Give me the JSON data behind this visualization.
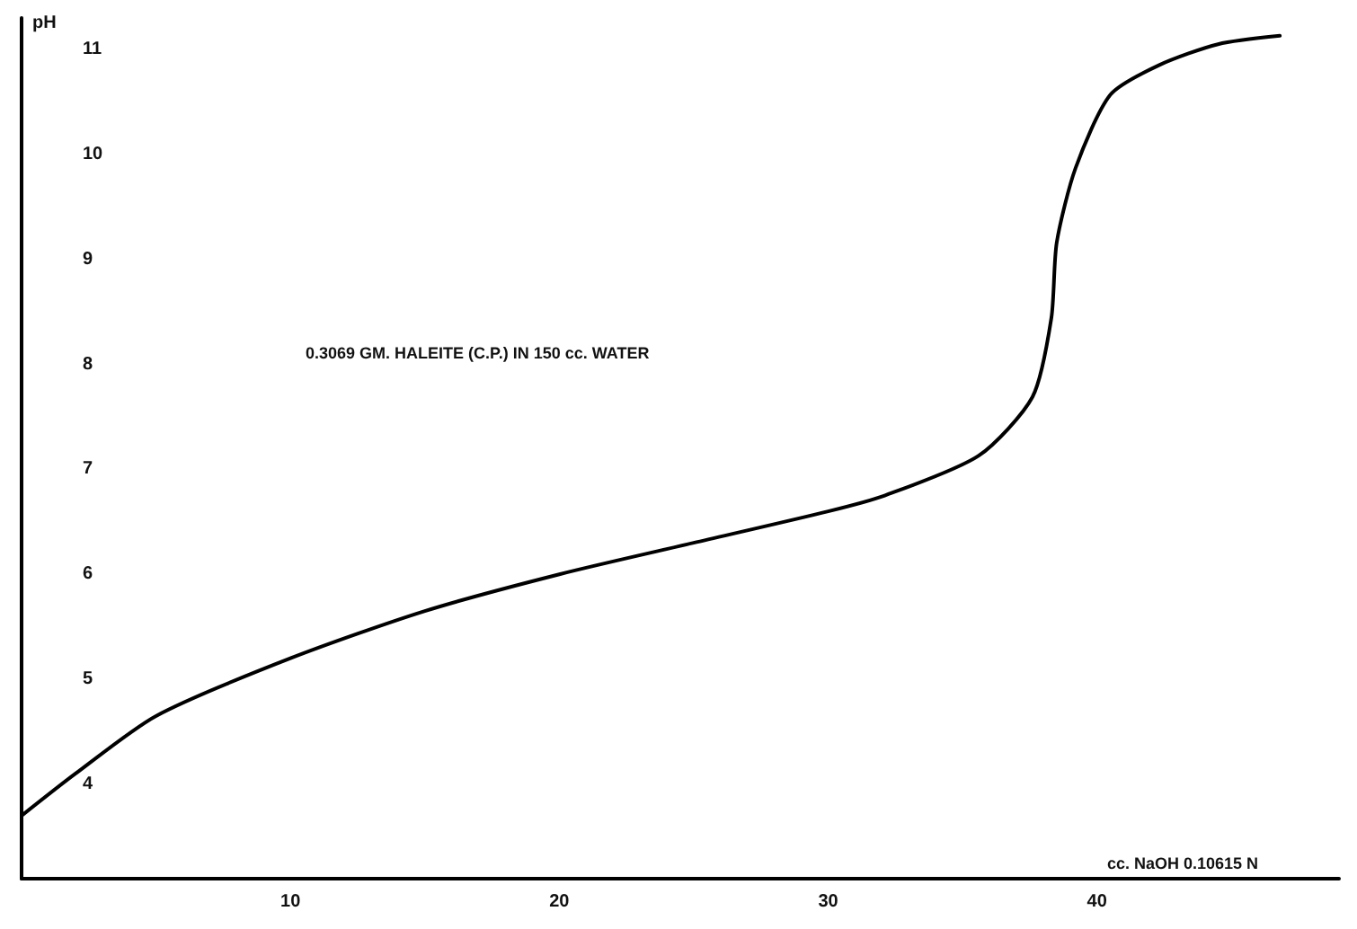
{
  "chart_data": {
    "type": "line",
    "xlabel": "cc. NaOH 0.10615 N",
    "ylabel": "pH",
    "annotations": [
      "0.3069 GM. HALEITE (C.P.) IN 150 cc. WATER"
    ],
    "x": [
      0,
      2,
      5,
      10,
      15,
      20,
      25,
      30,
      32.1,
      35.6,
      37.6,
      38.3,
      38.5,
      39.2,
      40.5,
      42.3,
      44.5,
      46.8
    ],
    "series": [
      {
        "color": "#000000",
        "values": [
          3.7,
          4.1,
          4.65,
          5.2,
          5.65,
          6.0,
          6.3,
          6.6,
          6.75,
          7.13,
          7.69,
          8.44,
          9.16,
          9.87,
          10.57,
          10.85,
          11.05,
          11.13
        ]
      }
    ],
    "xlim": [
      0,
      49
    ],
    "xticks": [
      10,
      20,
      30,
      40
    ],
    "ylim": [
      3.1,
      11.3
    ],
    "yticks": [
      4,
      5,
      6,
      7,
      8,
      9,
      10,
      11
    ],
    "grid": false,
    "marker": "none",
    "line_style": "solid"
  }
}
